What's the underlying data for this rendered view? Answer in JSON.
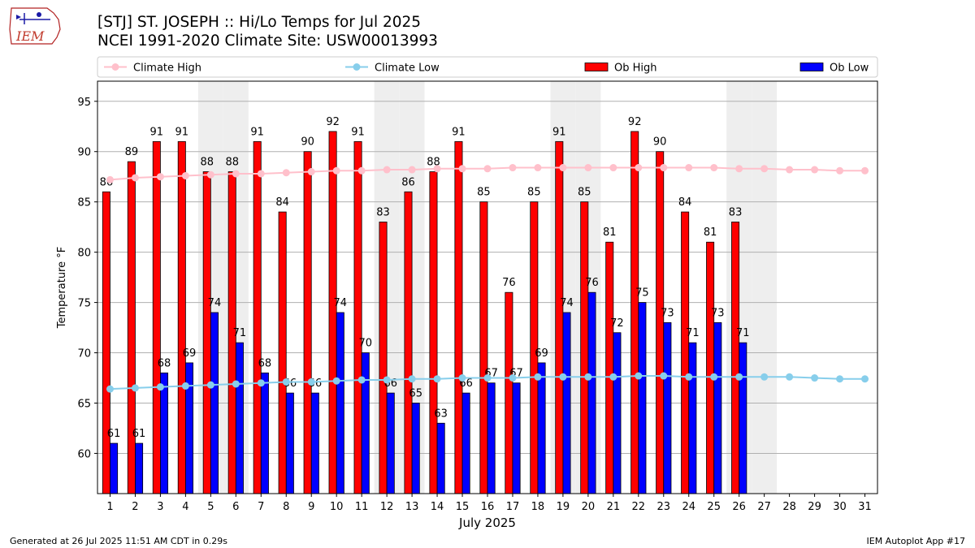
{
  "header": {
    "title_line1": "[STJ] ST. JOSEPH :: Hi/Lo Temps for Jul 2025",
    "title_line2": "NCEI 1991-2020 Climate Site: USW00013993",
    "logo_text": "IEM"
  },
  "footer": {
    "left": "Generated at 26 Jul 2025 11:51 AM CDT in 0.29s",
    "right": "IEM Autoplot App #17"
  },
  "colors": {
    "ob_high": "#ff0000",
    "ob_low": "#0000ff",
    "climate_high": "#ffc0cb",
    "climate_low": "#87ceeb",
    "weekend_shade": "#eeeeee",
    "grid": "#b0b0b0"
  },
  "chart_data": {
    "type": "bar",
    "title": "[STJ] ST. JOSEPH :: Hi/Lo Temps for Jul 2025",
    "subtitle": "NCEI 1991-2020 Climate Site: USW00013993",
    "xlabel": "July 2025",
    "ylabel": "Temperature °F",
    "ylim": [
      56,
      97
    ],
    "yticks": [
      60,
      65,
      70,
      75,
      80,
      85,
      90,
      95
    ],
    "categories": [
      "1",
      "2",
      "3",
      "4",
      "5",
      "6",
      "7",
      "8",
      "9",
      "10",
      "11",
      "12",
      "13",
      "14",
      "15",
      "16",
      "17",
      "18",
      "19",
      "20",
      "21",
      "22",
      "23",
      "24",
      "25",
      "26",
      "27",
      "28",
      "29",
      "30",
      "31"
    ],
    "grid": "horizontal",
    "legend_position": "top",
    "shaded_days": [
      5,
      6,
      12,
      13,
      19,
      20,
      26,
      27
    ],
    "series": [
      {
        "name": "Ob High",
        "kind": "bar",
        "values": [
          86,
          89,
          91,
          91,
          88,
          88,
          91,
          84,
          90,
          92,
          91,
          83,
          86,
          88,
          91,
          85,
          76,
          85,
          91,
          85,
          81,
          92,
          90,
          84,
          81,
          83,
          null,
          null,
          null,
          null,
          null
        ]
      },
      {
        "name": "Ob Low",
        "kind": "bar",
        "values": [
          61,
          61,
          68,
          69,
          74,
          71,
          68,
          66,
          66,
          74,
          70,
          66,
          65,
          63,
          66,
          67,
          67,
          69,
          74,
          76,
          72,
          75,
          73,
          71,
          73,
          71,
          null,
          null,
          null,
          null,
          null
        ]
      },
      {
        "name": "Climate High",
        "kind": "line",
        "values": [
          87.2,
          87.4,
          87.5,
          87.6,
          87.7,
          87.8,
          87.8,
          87.9,
          88.0,
          88.1,
          88.1,
          88.2,
          88.2,
          88.3,
          88.3,
          88.3,
          88.4,
          88.4,
          88.4,
          88.4,
          88.4,
          88.4,
          88.4,
          88.4,
          88.4,
          88.3,
          88.3,
          88.2,
          88.2,
          88.1,
          88.1
        ]
      },
      {
        "name": "Climate Low",
        "kind": "line",
        "values": [
          66.4,
          66.5,
          66.6,
          66.7,
          66.8,
          66.9,
          67.0,
          67.1,
          67.1,
          67.2,
          67.3,
          67.3,
          67.4,
          67.4,
          67.5,
          67.5,
          67.5,
          67.6,
          67.6,
          67.6,
          67.6,
          67.7,
          67.7,
          67.6,
          67.6,
          67.6,
          67.6,
          67.6,
          67.5,
          67.4,
          67.4
        ]
      }
    ]
  }
}
